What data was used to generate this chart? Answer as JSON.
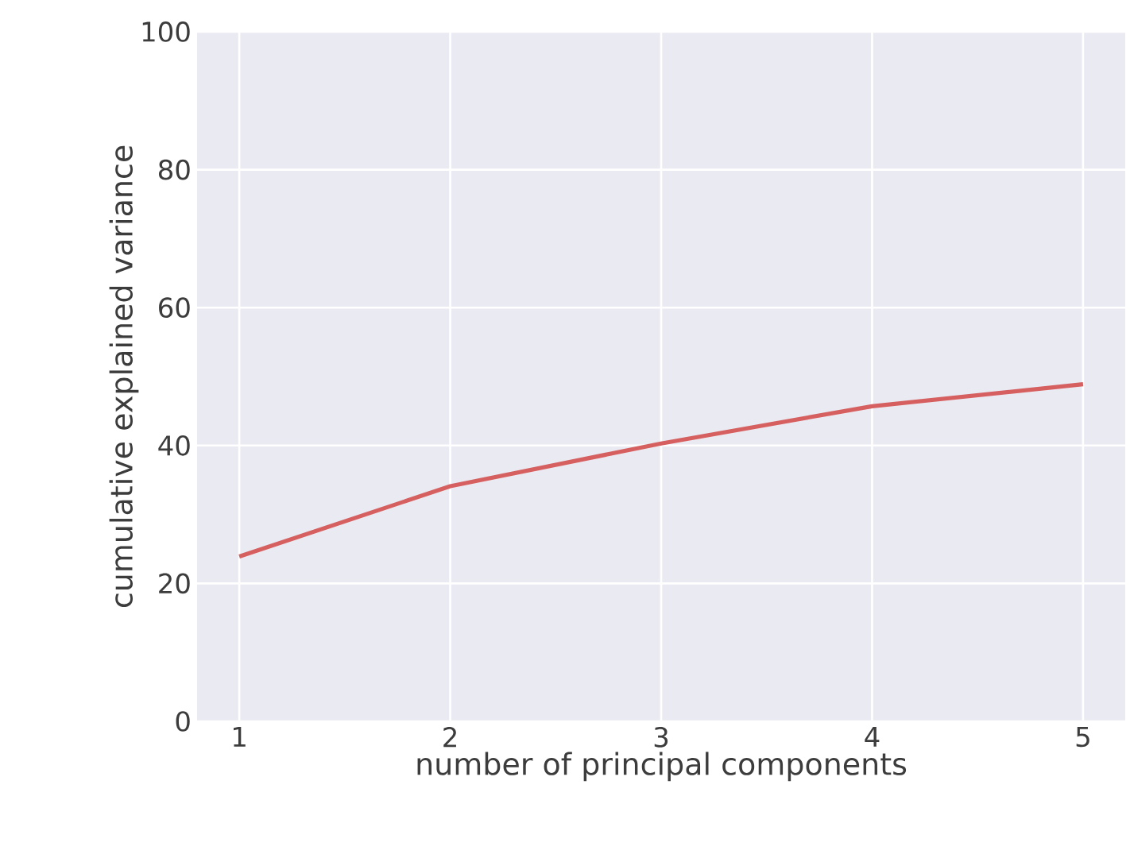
{
  "chart_data": {
    "type": "line",
    "xlabel": "number of principal components",
    "ylabel": "cumulative explained variance",
    "x": [
      1,
      2,
      3,
      4,
      5
    ],
    "series": [
      {
        "color": "#d65f5f",
        "values": [
          23.9,
          34.1,
          40.3,
          45.7,
          48.9
        ]
      }
    ],
    "xlim": [
      0.8,
      5.2
    ],
    "ylim": [
      0,
      100
    ],
    "xticks": [
      1,
      2,
      3,
      4,
      5
    ],
    "yticks": [
      0,
      20,
      40,
      60,
      80,
      100
    ],
    "grid": true,
    "marker": "none",
    "line_style": "solid"
  }
}
